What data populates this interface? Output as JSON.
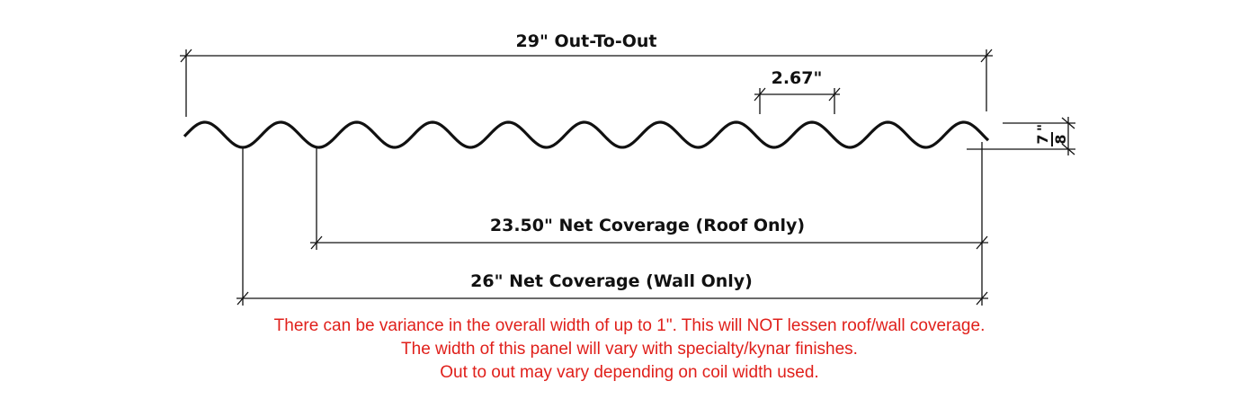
{
  "dimensions": {
    "out_to_out": "29\" Out-To-Out",
    "pitch": "2.67\"",
    "roof_coverage": "23.50\" Net Coverage (Roof Only)",
    "wall_coverage": "26\" Net Coverage (Wall Only)",
    "depth": {
      "numerator": "7",
      "denominator": "8",
      "unit": "\""
    }
  },
  "notes": [
    "There can be variance in the overall width of up to 1\". This will NOT lessen roof/wall coverage.",
    "The width of this panel will vary with specialty/kynar finishes.",
    "Out to out may vary depending on coil width used."
  ]
}
